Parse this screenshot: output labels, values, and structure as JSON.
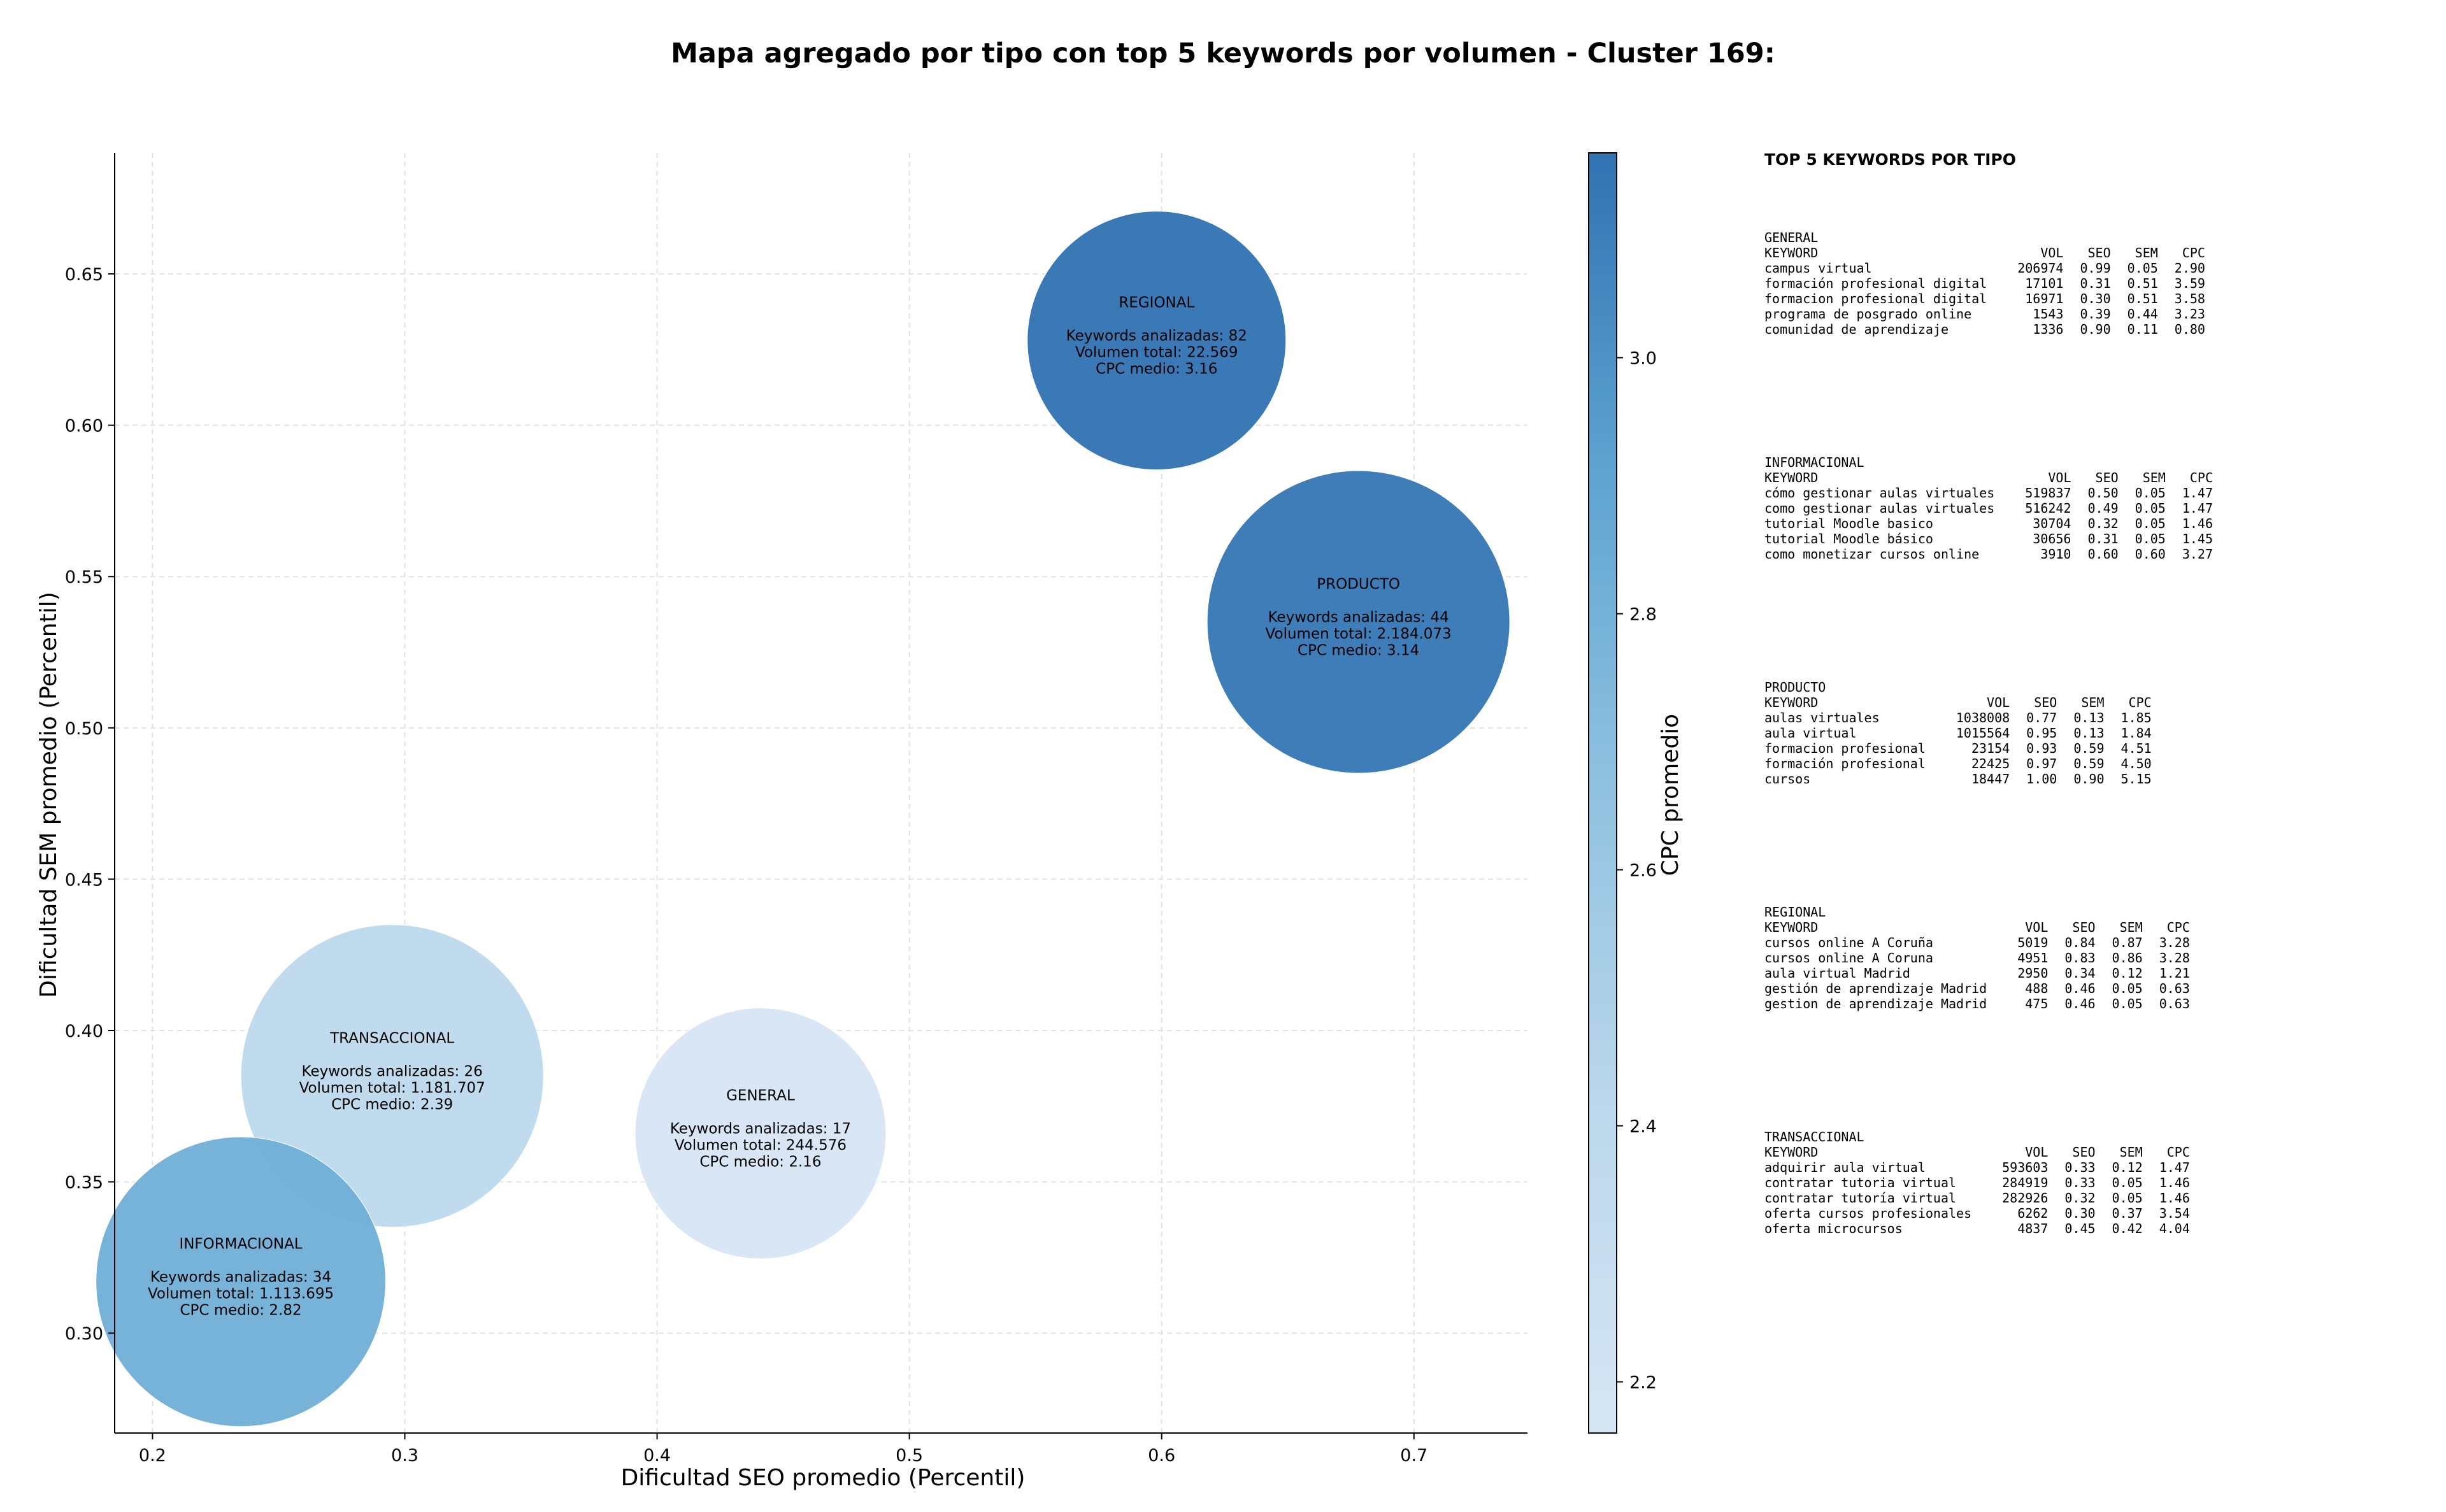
{
  "chart_data": {
    "type": "scatter",
    "title": "Mapa agregado por tipo con top 5 keywords por volumen - Cluster 169:",
    "xlabel": "Dificultad SEO promedio (Percentil)",
    "ylabel": "Dificultad SEM promedio (Percentil)",
    "xlim": [
      0.185,
      0.745
    ],
    "ylim": [
      0.267,
      0.69
    ],
    "xticks": [
      "0.2",
      "0.3",
      "0.4",
      "0.5",
      "0.6",
      "0.7"
    ],
    "yticks": [
      "0.30",
      "0.35",
      "0.40",
      "0.45",
      "0.50",
      "0.55",
      "0.60",
      "0.65"
    ],
    "grid": true,
    "colorbar": {
      "label": "CPC promedio",
      "range": [
        2.16,
        3.16
      ],
      "ticks": [
        "2.2",
        "2.4",
        "2.6",
        "2.8",
        "3.0"
      ]
    },
    "points": [
      {
        "name": "REGIONAL",
        "x": 0.598,
        "y": 0.628,
        "keywords_label": "Keywords analizadas: 82",
        "volume_label": "Volumen total: 22.569",
        "cpc_label": "CPC medio: 3.16",
        "cpc": 3.16,
        "keywords": 82,
        "volume": 22569,
        "size": 1.0
      },
      {
        "name": "PRODUCTO",
        "x": 0.678,
        "y": 0.535,
        "keywords_label": "Keywords analizadas: 44",
        "volume_label": "Volumen total: 2.184.073",
        "cpc_label": "CPC medio: 3.14",
        "cpc": 3.14,
        "keywords": 44,
        "volume": 2184073,
        "size": 1.17
      },
      {
        "name": "TRANSACCIONAL",
        "x": 0.295,
        "y": 0.385,
        "keywords_label": "Keywords analizadas: 26",
        "volume_label": "Volumen total: 1.181.707",
        "cpc_label": "CPC medio: 2.39",
        "cpc": 2.39,
        "keywords": 26,
        "volume": 1181707,
        "size": 1.17
      },
      {
        "name": "GENERAL",
        "x": 0.441,
        "y": 0.366,
        "keywords_label": "Keywords analizadas: 17",
        "volume_label": "Volumen total: 244.576",
        "cpc_label": "CPC medio: 2.16",
        "cpc": 2.16,
        "keywords": 17,
        "volume": 244576,
        "size": 0.97
      },
      {
        "name": "INFORMACIONAL",
        "x": 0.235,
        "y": 0.317,
        "keywords_label": "Keywords analizadas: 34",
        "volume_label": "Volumen total: 1.113.695",
        "cpc_label": "CPC medio: 2.82",
        "cpc": 2.82,
        "keywords": 34,
        "volume": 1113695,
        "size": 1.12
      }
    ]
  },
  "side_panel": {
    "title": "TOP 5 KEYWORDS POR TIPO",
    "headers": [
      "KEYWORD",
      "VOL",
      "SEO",
      "SEM",
      "CPC"
    ],
    "groups": [
      {
        "type": "GENERAL",
        "rows": [
          [
            "campus virtual",
            "206974",
            "0.99",
            "0.05",
            "2.90"
          ],
          [
            "formación profesional digital",
            "17101",
            "0.31",
            "0.51",
            "3.59"
          ],
          [
            "formacion profesional digital",
            "16971",
            "0.30",
            "0.51",
            "3.58"
          ],
          [
            "programa de posgrado online",
            "1543",
            "0.39",
            "0.44",
            "3.23"
          ],
          [
            "comunidad de aprendizaje",
            "1336",
            "0.90",
            "0.11",
            "0.80"
          ]
        ]
      },
      {
        "type": "INFORMACIONAL",
        "rows": [
          [
            "cómo gestionar aulas virtuales",
            "519837",
            "0.50",
            "0.05",
            "1.47"
          ],
          [
            "como gestionar aulas virtuales",
            "516242",
            "0.49",
            "0.05",
            "1.47"
          ],
          [
            "tutorial Moodle basico",
            "30704",
            "0.32",
            "0.05",
            "1.46"
          ],
          [
            "tutorial Moodle básico",
            "30656",
            "0.31",
            "0.05",
            "1.45"
          ],
          [
            "como monetizar cursos online",
            "3910",
            "0.60",
            "0.60",
            "3.27"
          ]
        ]
      },
      {
        "type": "PRODUCTO",
        "rows": [
          [
            "aulas virtuales",
            "1038008",
            "0.77",
            "0.13",
            "1.85"
          ],
          [
            "aula virtual",
            "1015564",
            "0.95",
            "0.13",
            "1.84"
          ],
          [
            "formacion profesional",
            "23154",
            "0.93",
            "0.59",
            "4.51"
          ],
          [
            "formación profesional",
            "22425",
            "0.97",
            "0.59",
            "4.50"
          ],
          [
            "cursos",
            "18447",
            "1.00",
            "0.90",
            "5.15"
          ]
        ]
      },
      {
        "type": "REGIONAL",
        "rows": [
          [
            "cursos online A Coruña",
            "5019",
            "0.84",
            "0.87",
            "3.28"
          ],
          [
            "cursos online A Coruna",
            "4951",
            "0.83",
            "0.86",
            "3.28"
          ],
          [
            "aula virtual Madrid",
            "2950",
            "0.34",
            "0.12",
            "1.21"
          ],
          [
            "gestión de aprendizaje Madrid",
            "488",
            "0.46",
            "0.05",
            "0.63"
          ],
          [
            "gestion de aprendizaje Madrid",
            "475",
            "0.46",
            "0.05",
            "0.63"
          ]
        ]
      },
      {
        "type": "TRANSACCIONAL",
        "rows": [
          [
            "adquirir aula virtual",
            "593603",
            "0.33",
            "0.12",
            "1.47"
          ],
          [
            "contratar tutoria virtual",
            "284919",
            "0.33",
            "0.05",
            "1.46"
          ],
          [
            "contratar tutoría virtual",
            "282926",
            "0.32",
            "0.05",
            "1.46"
          ],
          [
            "oferta cursos profesionales",
            "6262",
            "0.30",
            "0.37",
            "3.54"
          ],
          [
            "oferta microcursos",
            "4837",
            "0.45",
            "0.42",
            "4.04"
          ]
        ]
      }
    ]
  }
}
